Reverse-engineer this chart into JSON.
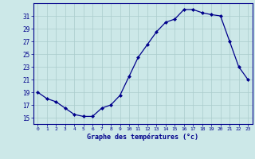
{
  "hours": [
    0,
    1,
    2,
    3,
    4,
    5,
    6,
    7,
    8,
    9,
    10,
    11,
    12,
    13,
    14,
    15,
    16,
    17,
    18,
    19,
    20,
    21,
    22,
    23
  ],
  "temps": [
    19,
    18,
    17.5,
    16.5,
    15.5,
    15.2,
    15.2,
    16.5,
    17,
    18.5,
    21.5,
    24.5,
    26.5,
    28.5,
    30,
    30.5,
    32,
    32,
    31.5,
    31.2,
    31,
    27,
    23,
    21
  ],
  "ylim": [
    14,
    33
  ],
  "yticks": [
    15,
    17,
    19,
    21,
    23,
    25,
    27,
    29,
    31
  ],
  "xticks": [
    0,
    1,
    2,
    3,
    4,
    5,
    6,
    7,
    8,
    9,
    10,
    11,
    12,
    13,
    14,
    15,
    16,
    17,
    18,
    19,
    20,
    21,
    22,
    23
  ],
  "xlabel": "Graphe des températures (°c)",
  "line_color": "#00008b",
  "marker_color": "#00008b",
  "bg_color": "#cce8e8",
  "grid_color": "#aacccc",
  "axis_color": "#00008b",
  "label_color": "#00008b"
}
